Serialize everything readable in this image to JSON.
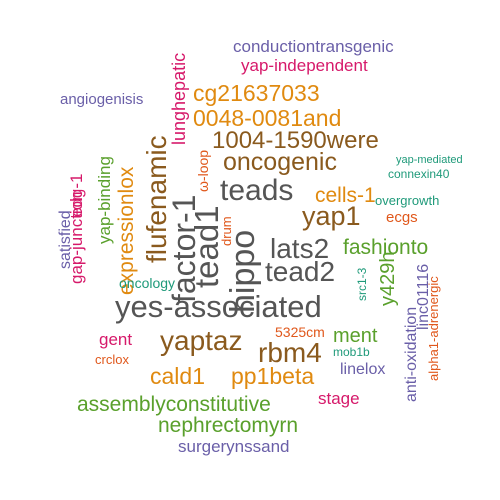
{
  "words": [
    {
      "text": "conductiontransgenic",
      "color": "#6a5fa8"
    },
    {
      "text": "yap-independent",
      "color": "#d6196a"
    },
    {
      "text": "angiogenisis",
      "color": "#6a5fa8"
    },
    {
      "text": "lunghepatic",
      "color": "#d6196a"
    },
    {
      "text": "cg21637033",
      "color": "#e08a10"
    },
    {
      "text": "0048-0081and",
      "color": "#e08a10"
    },
    {
      "text": "1004-1590were",
      "color": "#8a5a1e"
    },
    {
      "text": "oncogenic",
      "color": "#8a5a1e"
    },
    {
      "text": "flufenamic",
      "color": "#8a5a1e"
    },
    {
      "text": "ω-loop",
      "color": "#e0581c"
    },
    {
      "text": "yap-mediated",
      "color": "#1f9a7a"
    },
    {
      "text": "connexin40",
      "color": "#1f9a7a"
    },
    {
      "text": "expressionlox",
      "color": "#e08a10"
    },
    {
      "text": "yap-binding",
      "color": "#5aa02c"
    },
    {
      "text": "gap-junction",
      "color": "#d6196a"
    },
    {
      "text": "edg-1",
      "color": "#d6196a"
    },
    {
      "text": "satisfied",
      "color": "#6a5fa8"
    },
    {
      "text": "teads",
      "color": "#555555"
    },
    {
      "text": "cells-1",
      "color": "#e08a10"
    },
    {
      "text": "overgrowth",
      "color": "#1f9a7a"
    },
    {
      "text": "factor-1",
      "color": "#555555"
    },
    {
      "text": "tead1",
      "color": "#555555"
    },
    {
      "text": "yap1",
      "color": "#8a5a1e"
    },
    {
      "text": "ecgs",
      "color": "#e0581c"
    },
    {
      "text": "drum",
      "color": "#e0581c"
    },
    {
      "text": "hippo",
      "color": "#555555"
    },
    {
      "text": "lats2",
      "color": "#555555"
    },
    {
      "text": "fashionto",
      "color": "#5aa02c"
    },
    {
      "text": "tead2",
      "color": "#555555"
    },
    {
      "text": "y429h",
      "color": "#5aa02c"
    },
    {
      "text": "linc01116",
      "color": "#6a5fa8"
    },
    {
      "text": "oncology",
      "color": "#1f9a7a"
    },
    {
      "text": "src1-3",
      "color": "#1f9a7a"
    },
    {
      "text": "anti-oxidation",
      "color": "#6a5fa8"
    },
    {
      "text": "alpha1-adrenergic",
      "color": "#e0581c"
    },
    {
      "text": "yes-associated",
      "color": "#555555"
    },
    {
      "text": "ment",
      "color": "#5aa02c"
    },
    {
      "text": "5325cm",
      "color": "#e0581c"
    },
    {
      "text": "yaptaz",
      "color": "#8a5a1e"
    },
    {
      "text": "mob1b",
      "color": "#1f9a7a"
    },
    {
      "text": "gent",
      "color": "#d6196a"
    },
    {
      "text": "rbm4",
      "color": "#8a5a1e"
    },
    {
      "text": "crclox",
      "color": "#e0581c"
    },
    {
      "text": "cald1",
      "color": "#e08a10"
    },
    {
      "text": "pp1beta",
      "color": "#e08a10"
    },
    {
      "text": "linelox",
      "color": "#6a5fa8"
    },
    {
      "text": "stage",
      "color": "#d6196a"
    },
    {
      "text": "assemblyconstitutive",
      "color": "#5aa02c"
    },
    {
      "text": "nephrectomyrn",
      "color": "#5aa02c"
    },
    {
      "text": "surgerynssand",
      "color": "#6a5fa8"
    }
  ]
}
